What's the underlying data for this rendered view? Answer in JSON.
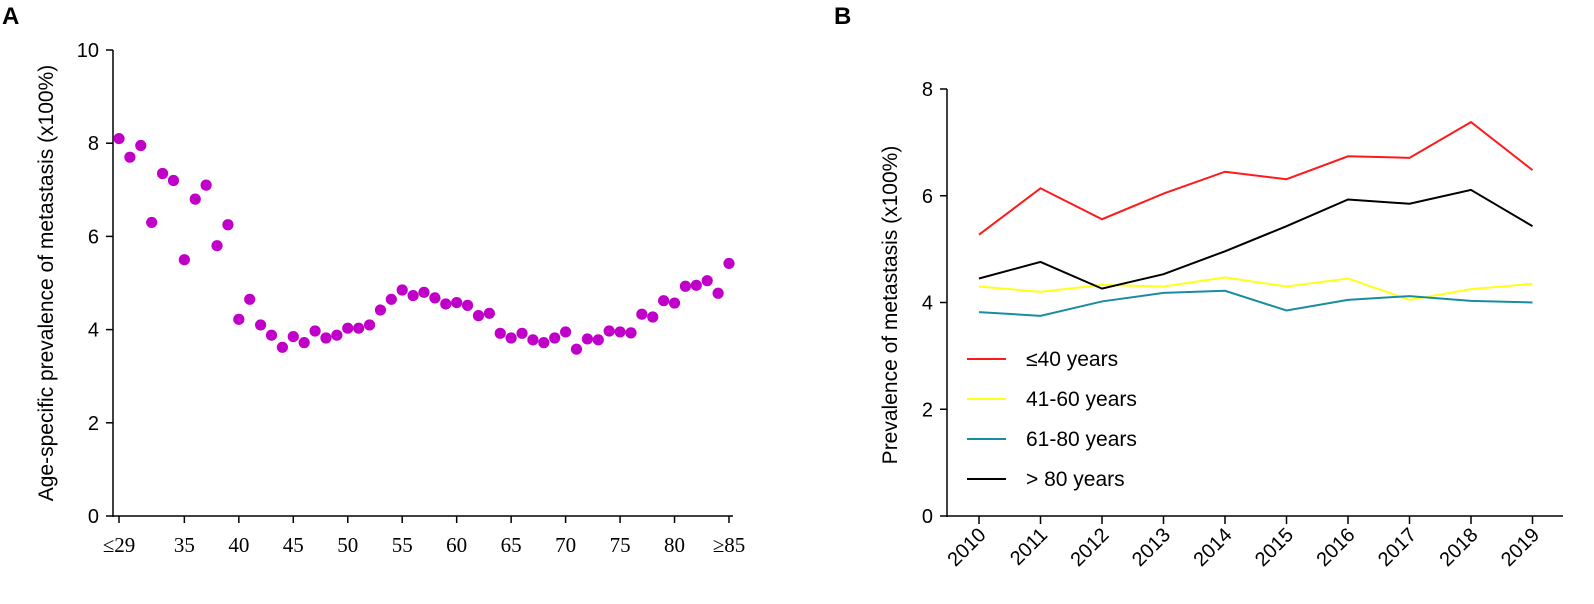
{
  "panels": {
    "a_label": "A",
    "b_label": "B"
  },
  "chart_data": [
    {
      "id": "A",
      "type": "scatter",
      "title": "",
      "xlabel": "",
      "ylabel": "Age-specific prevalence of metastasis (x100%)",
      "xlim": [
        29,
        85
      ],
      "ylim": [
        0,
        10
      ],
      "grid": false,
      "point_color": "#C000C8",
      "yticks": [
        0,
        2,
        4,
        6,
        8,
        10
      ],
      "xticks": [
        29,
        35,
        40,
        45,
        50,
        55,
        60,
        65,
        70,
        75,
        80,
        85
      ],
      "xtick_labels": [
        "≤29",
        "35",
        "40",
        "45",
        "50",
        "55",
        "60",
        "65",
        "70",
        "75",
        "80",
        "≥85"
      ],
      "x": [
        29,
        30,
        31,
        32,
        33,
        34,
        35,
        36,
        37,
        38,
        39,
        40,
        41,
        42,
        43,
        44,
        45,
        46,
        47,
        48,
        49,
        50,
        51,
        52,
        53,
        54,
        55,
        56,
        57,
        58,
        59,
        60,
        61,
        62,
        63,
        64,
        65,
        66,
        67,
        68,
        69,
        70,
        71,
        72,
        73,
        74,
        75,
        76,
        77,
        78,
        79,
        80,
        81,
        82,
        83,
        84,
        85
      ],
      "y": [
        8.1,
        7.7,
        7.95,
        6.3,
        7.35,
        7.2,
        5.5,
        6.8,
        7.1,
        5.8,
        6.25,
        4.22,
        4.65,
        4.1,
        3.88,
        3.62,
        3.85,
        3.72,
        3.97,
        3.82,
        3.88,
        4.03,
        4.03,
        4.1,
        4.42,
        4.65,
        4.85,
        4.73,
        4.8,
        4.68,
        4.55,
        4.58,
        4.52,
        4.3,
        4.35,
        3.92,
        3.82,
        3.92,
        3.78,
        3.72,
        3.82,
        3.95,
        3.58,
        3.8,
        3.78,
        3.97,
        3.95,
        3.93,
        4.33,
        4.27,
        4.62,
        4.57,
        4.93,
        4.95,
        5.05,
        4.78,
        5.42
      ]
    },
    {
      "id": "B",
      "type": "line",
      "title": "",
      "xlabel": "",
      "ylabel": "Prevalence of metastasis (x100%)",
      "ylim": [
        0,
        8
      ],
      "yticks": [
        0,
        2,
        4,
        6,
        8
      ],
      "grid": false,
      "categories": [
        "2010",
        "2011",
        "2012",
        "2013",
        "2014",
        "2015",
        "2016",
        "2017",
        "2018",
        "2019"
      ],
      "legend_position": "bottom-left",
      "series": [
        {
          "name": "≤40 years",
          "color": "#FF1A1A",
          "values": [
            5.27,
            6.14,
            5.56,
            6.04,
            6.45,
            6.31,
            6.74,
            6.71,
            7.38,
            6.48
          ]
        },
        {
          "name": "41-60 years",
          "color": "#FFFF1A",
          "values": [
            4.3,
            4.2,
            4.33,
            4.3,
            4.47,
            4.3,
            4.45,
            4.05,
            4.25,
            4.35
          ]
        },
        {
          "name": "61-80 years",
          "color": "#1A8CA0",
          "values": [
            3.82,
            3.75,
            4.02,
            4.18,
            4.22,
            3.85,
            4.05,
            4.12,
            4.03,
            4.0
          ]
        },
        {
          "name": "> 80 years",
          "color": "#000000",
          "values": [
            4.45,
            4.76,
            4.26,
            4.53,
            4.96,
            5.43,
            5.93,
            5.85,
            6.11,
            5.43
          ]
        }
      ]
    }
  ]
}
